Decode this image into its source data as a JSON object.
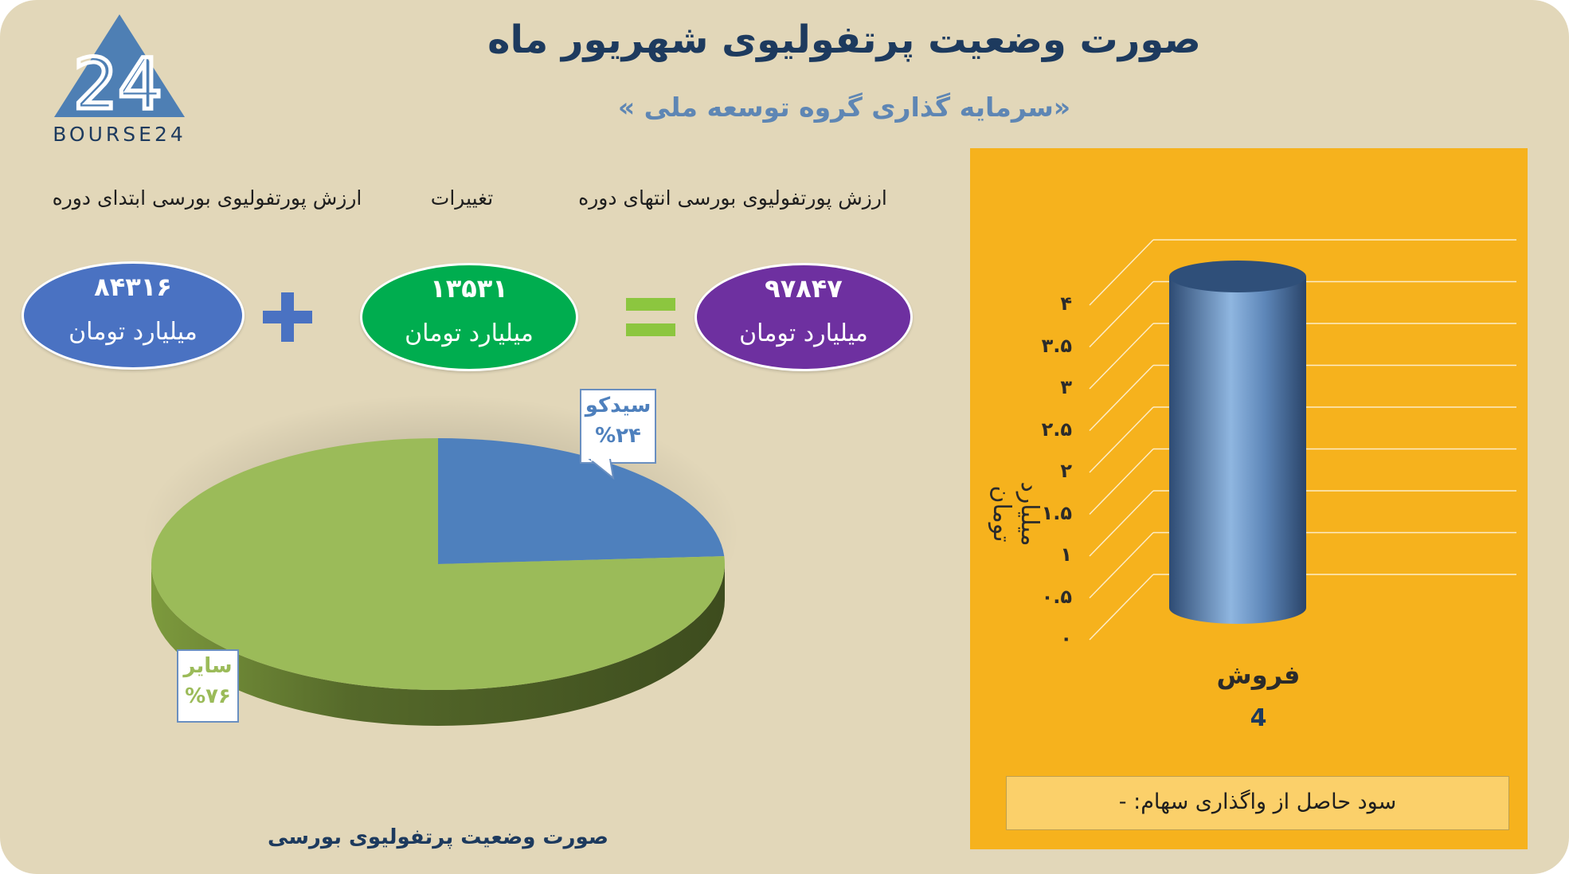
{
  "header": {
    "title": "صورت وضعیت پرتفولیوی شهریور ماه",
    "subtitle": "«سرمایه گذاری گروه توسعه ملی »"
  },
  "logo": {
    "text": "BOURSE24",
    "mark": "24"
  },
  "labels": {
    "start": "ارزش پورتفولیوی بورسی ابتدای دوره",
    "changes": "تغییرات",
    "end": "ارزش پورتفولیوی بورسی انتهای دوره"
  },
  "values": {
    "start": "۸۴۳۱۶",
    "changes": "۱۳۵۳۱",
    "end": "۹۷۸۴۷",
    "unit": "میلیارد تومان"
  },
  "colors": {
    "start_oval": "#4a72c2",
    "changes_oval": "#00ad4f",
    "end_oval": "#6e30a0",
    "plus": "#4a72c2",
    "equals": "#8cc63f",
    "pie_blue": "#4e80bd",
    "pie_green": "#9bbb59",
    "panel": "#f6b21d",
    "title": "#1d3a5e"
  },
  "icons": {
    "plus": "plus-icon",
    "equals": "equals-icon"
  },
  "chart_data": [
    {
      "type": "pie",
      "title": "صورت وضعیت پرتفولیوی بورسی",
      "slices": [
        {
          "name": "سیدکو",
          "value": 24,
          "label": "%۲۴",
          "color": "#4e80bd"
        },
        {
          "name": "سایر",
          "value": 76,
          "label": "%۷۶",
          "color": "#9bbb59"
        }
      ]
    },
    {
      "type": "bar",
      "categories": [
        "فروش"
      ],
      "values": [
        4
      ],
      "value_labels": [
        "4"
      ],
      "ylabel": "میلیارد تومان",
      "ylim": [
        0,
        4
      ],
      "yticks": [
        "۰",
        "۰.۵",
        "۱",
        "۱.۵",
        "۲",
        "۲.۵",
        "۳",
        "۳.۵",
        "۴"
      ],
      "grid": true,
      "note": "سود حاصل از واگذاری سهام: -"
    }
  ]
}
